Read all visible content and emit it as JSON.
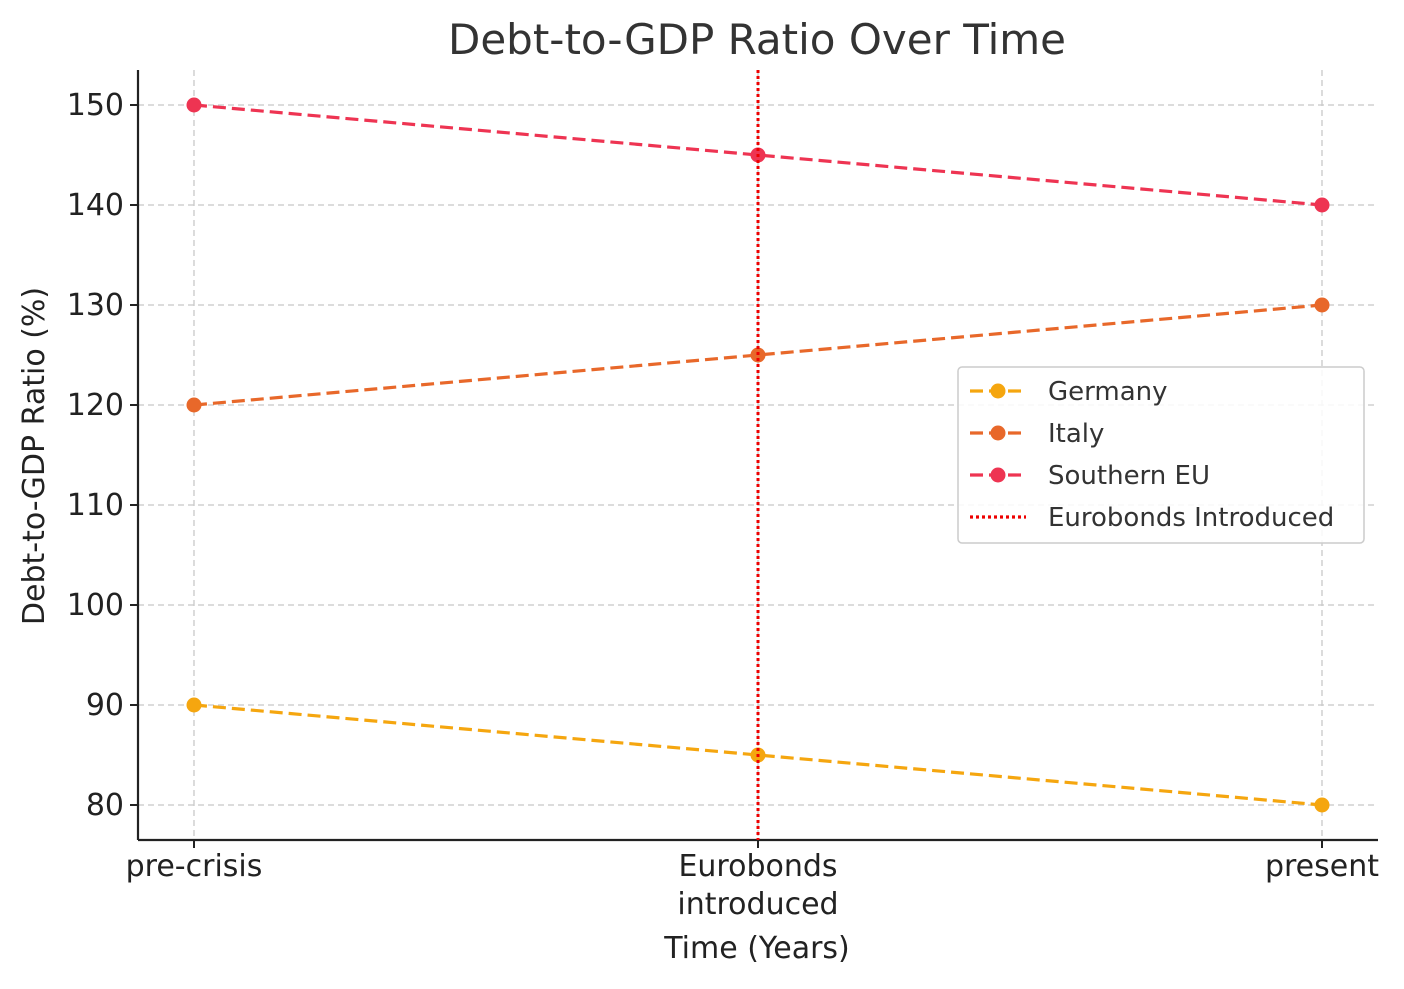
{
  "chart_data": {
    "type": "line",
    "title": "Debt-to-GDP Ratio Over Time",
    "xlabel": "Time (Years)",
    "ylabel": "Debt-to-GDP Ratio (%)",
    "categories": [
      "pre-crisis",
      "Eurobonds\nintroduced",
      "present"
    ],
    "ylim": [
      76.5,
      153.5
    ],
    "yticks": [
      80,
      90,
      100,
      110,
      120,
      130,
      140,
      150
    ],
    "grid": true,
    "legend_position": "center-right",
    "series": [
      {
        "name": "Germany",
        "values": [
          90,
          85,
          80
        ],
        "color": "#f5a60f",
        "style": "dashed",
        "marker": "circle"
      },
      {
        "name": "Italy",
        "values": [
          120,
          125,
          130
        ],
        "color": "#e8682a",
        "style": "dashed",
        "marker": "circle"
      },
      {
        "name": "Southern EU",
        "values": [
          150,
          145,
          140
        ],
        "color": "#ee3452",
        "style": "dashed",
        "marker": "circle"
      }
    ],
    "annotations": [
      {
        "type": "vline",
        "label": "Eurobonds Introduced",
        "x_category_index": 1,
        "color": "#ee0000",
        "style": "dotted"
      }
    ]
  }
}
